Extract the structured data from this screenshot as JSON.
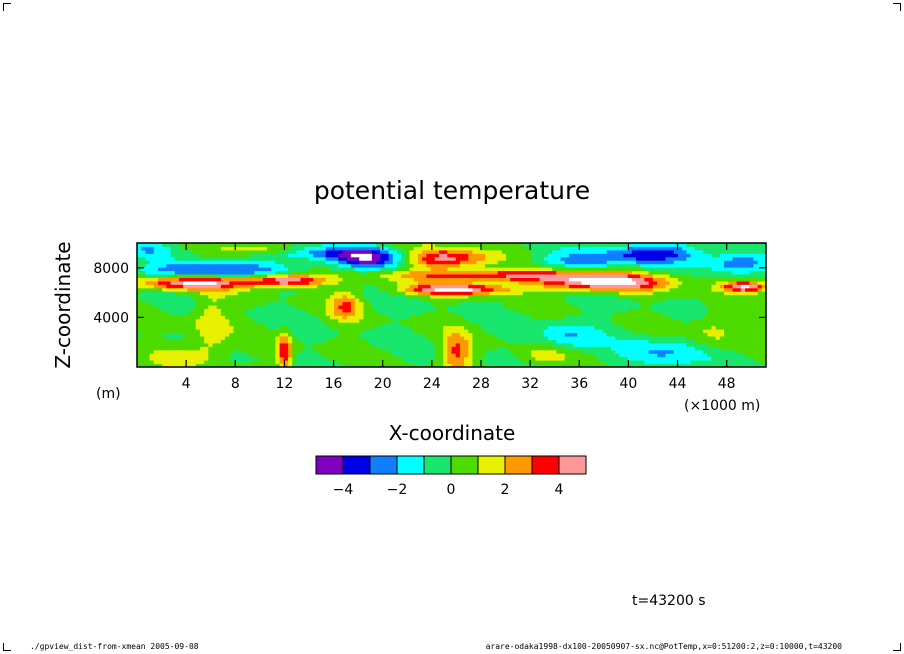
{
  "chart_data": {
    "type": "heatmap",
    "title": "potential temperature",
    "xlabel": "X-coordinate",
    "ylabel": "Z-coordinate",
    "x_unit": "(×1000 m)",
    "y_unit": "(m)",
    "xlim": [
      0,
      51.2
    ],
    "ylim": [
      0,
      10000
    ],
    "x_ticks": [
      4,
      8,
      12,
      16,
      20,
      24,
      28,
      32,
      36,
      40,
      44,
      48
    ],
    "y_ticks": [
      4000,
      8000
    ],
    "x_tick_labels": [
      "4",
      "8",
      "12",
      "16",
      "20",
      "24",
      "28",
      "32",
      "36",
      "40",
      "44",
      "48"
    ],
    "y_tick_labels": [
      "4000",
      "8000"
    ],
    "colorbar": {
      "levels": [
        -5,
        -4,
        -3,
        -2,
        -1,
        0,
        1,
        2,
        3,
        4,
        5
      ],
      "colors": [
        "#7f00bf",
        "#0000e6",
        "#0f7fff",
        "#00ffff",
        "#19e66c",
        "#4ddb00",
        "#e6f000",
        "#ff9900",
        "#ff0000",
        "#ff9999"
      ],
      "tick_values": [
        -4,
        -2,
        0,
        2,
        4
      ],
      "tick_labels": [
        "−4",
        "−2",
        "0",
        "2",
        "4"
      ],
      "out_of_range_color": "#ffffff"
    },
    "features": [
      {
        "x": 4.5,
        "z": 6800,
        "value": 5.5,
        "rx": 4.0,
        "rz": 550
      },
      {
        "x": 12.0,
        "z": 7000,
        "value": 5.3,
        "rx": 3.2,
        "rz": 500
      },
      {
        "x": 26.0,
        "z": 6300,
        "value": 5.4,
        "rx": 4.0,
        "rz": 450
      },
      {
        "x": 38.0,
        "z": 6800,
        "value": 5.5,
        "rx": 5.0,
        "rz": 650
      },
      {
        "x": 49.5,
        "z": 6500,
        "value": 5.2,
        "rx": 2.0,
        "rz": 450
      },
      {
        "x": 25.0,
        "z": 8800,
        "value": 4.6,
        "rx": 3.5,
        "rz": 800
      },
      {
        "x": 30.0,
        "z": 7400,
        "value": 4.0,
        "rx": 9.0,
        "rz": 500
      },
      {
        "x": 6.0,
        "z": 7800,
        "value": -3.2,
        "rx": 6.0,
        "rz": 700
      },
      {
        "x": 19.0,
        "z": 8700,
        "value": -4.0,
        "rx": 3.0,
        "rz": 800
      },
      {
        "x": 15.0,
        "z": 9200,
        "value": -2.6,
        "rx": 5.0,
        "rz": 600
      },
      {
        "x": 42.0,
        "z": 9200,
        "value": -3.6,
        "rx": 4.0,
        "rz": 800
      },
      {
        "x": 49.0,
        "z": 8400,
        "value": -3.2,
        "rx": 2.5,
        "rz": 800
      },
      {
        "x": 36.0,
        "z": 8600,
        "value": -2.0,
        "rx": 4.0,
        "rz": 700
      },
      {
        "x": 12.0,
        "z": 1200,
        "value": 4.0,
        "rx": 0.6,
        "rz": 1500
      },
      {
        "x": 26.0,
        "z": 1200,
        "value": 3.2,
        "rx": 1.2,
        "rz": 1600
      },
      {
        "x": 17.0,
        "z": 5000,
        "value": 2.8,
        "rx": 1.3,
        "rz": 1200
      },
      {
        "x": 6.0,
        "z": 3500,
        "value": 1.8,
        "rx": 1.5,
        "rz": 2500
      },
      {
        "x": 35.0,
        "z": 2500,
        "value": -2.0,
        "rx": 2.5,
        "rz": 1200
      },
      {
        "x": 43.0,
        "z": 1200,
        "value": -2.1,
        "rx": 3.5,
        "rz": 1200
      },
      {
        "x": 4.0,
        "z": 1000,
        "value": 1.6,
        "rx": 2.5,
        "rz": 1000
      },
      {
        "x": 33.0,
        "z": 1000,
        "value": 1.5,
        "rx": 2.0,
        "rz": 900
      },
      {
        "x": 1.0,
        "z": 9500,
        "value": -1.5,
        "rx": 2.0,
        "rz": 600
      },
      {
        "x": 10.0,
        "z": 9500,
        "value": 2.0,
        "rx": 3.0,
        "rz": 500
      },
      {
        "x": 47.0,
        "z": 3000,
        "value": 1.5,
        "rx": 2.0,
        "rz": 1500
      }
    ]
  },
  "time_label": "t=43200 s",
  "footer_left": "./gpview_dist-from-xmean 2005-09-08",
  "footer_right": "arare-odaka1998-dx100-20050907-sx.nc@PotTemp,x=0:51200:2,z=0:10000,t=43200"
}
